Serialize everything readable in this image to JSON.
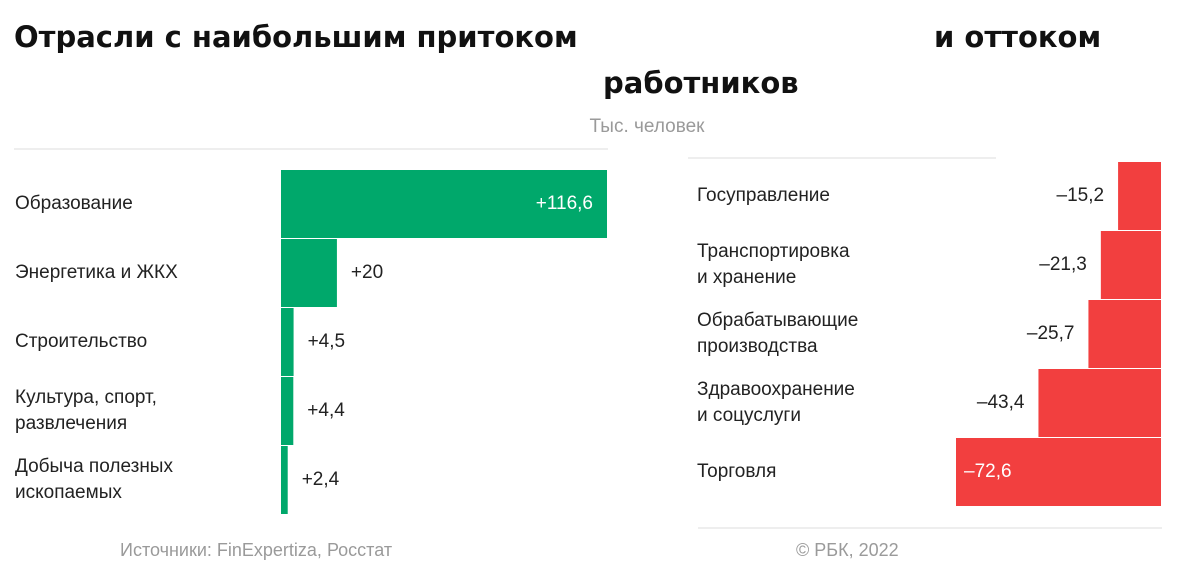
{
  "title": {
    "part1": "Отрасли с наибольшим притоком",
    "part2": "и оттоком",
    "part3": "работников"
  },
  "subtitle": "Тыс. человек",
  "colors": {
    "inflow": "#00a86b",
    "outflow": "#f23f3f",
    "divider": "#dddddd"
  },
  "chart_data": [
    {
      "type": "bar",
      "orientation": "horizontal",
      "categories": [
        "Образование",
        "Энергетика и ЖКХ",
        "Строительство",
        "Культура, спорт, развлечения",
        "Добыча полезных ископаемых"
      ],
      "category_lines": [
        [
          "Образование"
        ],
        [
          "Энергетика и ЖКХ"
        ],
        [
          "Строительство"
        ],
        [
          "Культура, спорт,",
          "развлечения"
        ],
        [
          "Добыча полезных",
          "ископаемых"
        ]
      ],
      "values": [
        116.6,
        20,
        4.5,
        4.4,
        2.4
      ],
      "value_labels": [
        "+116,6",
        "+20",
        "+4,5",
        "+4,4",
        "+2,4"
      ],
      "xlim": [
        0,
        116.6
      ],
      "grid": false
    },
    {
      "type": "bar",
      "orientation": "horizontal",
      "categories": [
        "Госуправление",
        "Транспортировка и хранение",
        "Обрабатывающие производства",
        "Здравоохранение и соцуслуги",
        "Торговля"
      ],
      "category_lines": [
        [
          "Госуправление"
        ],
        [
          "Транспортировка",
          "и хранение"
        ],
        [
          "Обрабатывающие",
          "производства"
        ],
        [
          "Здравоохранение",
          "и соцуслуги"
        ],
        [
          "Торговля"
        ]
      ],
      "values": [
        -15.2,
        -21.3,
        -25.7,
        -43.4,
        -72.6
      ],
      "value_labels": [
        "–15,2",
        "–21,3",
        "–25,7",
        "–43,4",
        "–72,6"
      ],
      "xlim": [
        -72.6,
        0
      ],
      "grid": false
    }
  ],
  "footer": {
    "source": "Источники: FinExpertiza, Росстат",
    "copyright": "© РБК, 2022"
  }
}
